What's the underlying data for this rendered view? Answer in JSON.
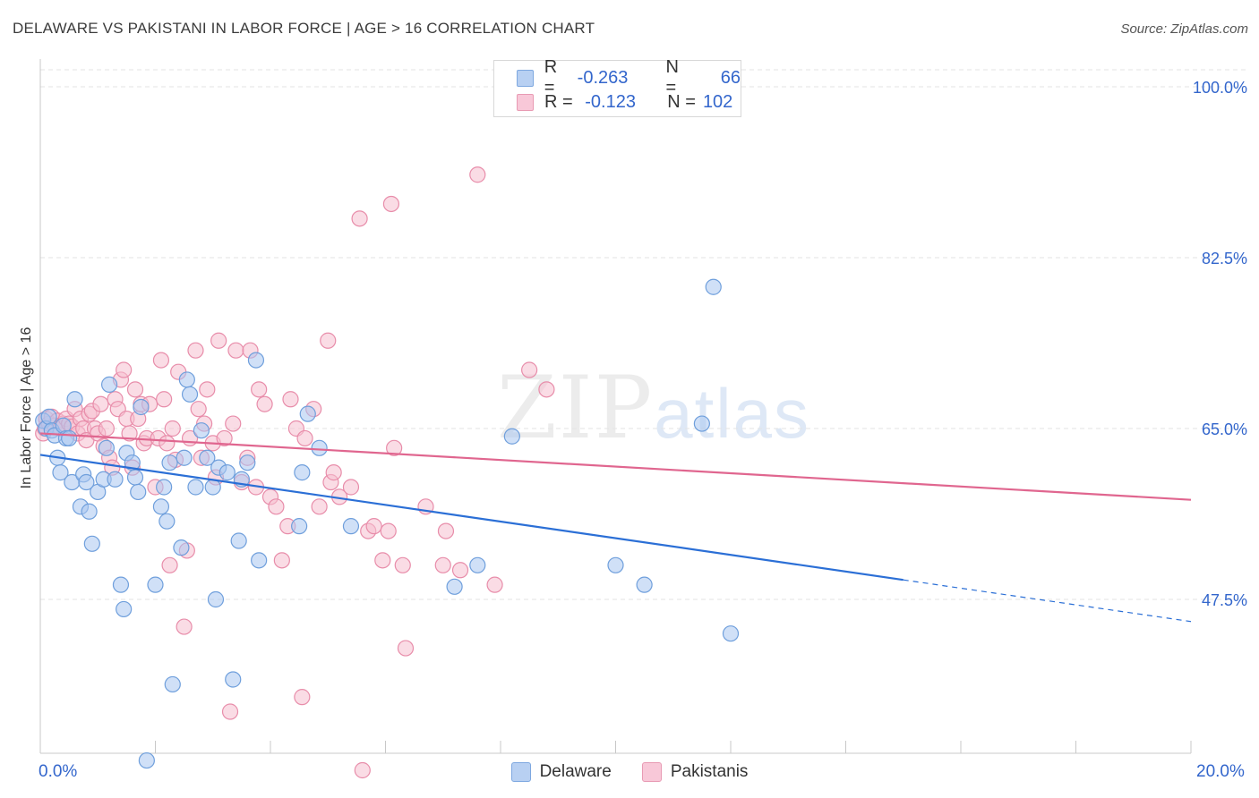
{
  "title": "DELAWARE VS PAKISTANI IN LABOR FORCE | AGE > 16 CORRELATION CHART",
  "source": "Source: ZipAtlas.com",
  "watermark": {
    "zip": "ZIP",
    "atlas": "atlas"
  },
  "legend_top": {
    "delaware": {
      "r_label": "R =",
      "r_value": "-0.263",
      "n_label": "N =",
      "n_value": "66"
    },
    "pakistani": {
      "r_label": "R =",
      "r_value": "-0.123",
      "n_label": "N =",
      "n_value": "102"
    }
  },
  "colors": {
    "delaware_fill": "#a9c7f0",
    "delaware_stroke": "#6f9fdc",
    "delaware_line": "#2b6fd6",
    "pakistani_fill": "#f5bfd0",
    "pakistani_stroke": "#e88daa",
    "pakistani_line": "#e0668f",
    "axis_text": "#3366cc",
    "grid": "#e3e3e3"
  },
  "chart_data": {
    "type": "scatter",
    "title": "DELAWARE VS PAKISTANI IN LABOR FORCE | AGE > 16 CORRELATION CHART",
    "xlabel": "",
    "ylabel": "In Labor Force | Age > 16",
    "xlim": [
      0,
      20
    ],
    "ylim": [
      32.5,
      104
    ],
    "x_tick_labels": [
      "0.0%",
      "20.0%"
    ],
    "y_ticks": [
      47.5,
      65.0,
      82.5,
      100.0
    ],
    "y_tick_labels": [
      "47.5%",
      "65.0%",
      "82.5%",
      "100.0%"
    ],
    "grid": true,
    "legend_position": "bottom-center",
    "series": [
      {
        "name": "Delaware",
        "x": [
          0.05,
          0.1,
          0.15,
          0.2,
          0.25,
          0.3,
          0.35,
          0.4,
          0.45,
          0.5,
          0.55,
          0.6,
          0.7,
          0.75,
          0.8,
          0.85,
          0.9,
          1.0,
          1.1,
          1.15,
          1.2,
          1.3,
          1.4,
          1.45,
          1.5,
          1.6,
          1.65,
          1.7,
          1.75,
          2.0,
          2.1,
          2.15,
          2.2,
          2.25,
          2.3,
          2.45,
          2.5,
          2.55,
          2.6,
          2.7,
          2.8,
          2.9,
          3.0,
          3.05,
          3.1,
          3.25,
          3.35,
          3.45,
          3.5,
          3.6,
          3.75,
          3.8,
          4.5,
          4.55,
          4.65,
          4.85,
          5.4,
          7.2,
          7.6,
          8.2,
          10.0,
          10.5,
          11.5,
          11.7,
          12.0,
          1.85
        ],
        "y": [
          65.8,
          65.0,
          66.2,
          64.8,
          64.3,
          62.0,
          60.5,
          65.3,
          64.0,
          64.0,
          59.5,
          68.0,
          57.0,
          60.3,
          59.5,
          56.5,
          53.2,
          58.5,
          59.8,
          63.0,
          69.5,
          59.8,
          49.0,
          46.5,
          62.5,
          61.5,
          60.0,
          58.5,
          67.2,
          49.0,
          57.0,
          59.0,
          55.5,
          61.5,
          38.8,
          52.8,
          62.0,
          70.0,
          68.5,
          59.0,
          64.8,
          62.0,
          59.0,
          47.5,
          61.0,
          60.5,
          39.3,
          53.5,
          59.8,
          61.5,
          72.0,
          51.5,
          55.0,
          60.5,
          66.5,
          63.0,
          55.0,
          48.8,
          51.0,
          64.2,
          51.0,
          49.0,
          65.5,
          79.5,
          44.0,
          31.0
        ],
        "_note_removed": true
      },
      {
        "name": "Pakistani",
        "x": [
          0.05,
          0.08,
          0.1,
          0.15,
          0.2,
          0.25,
          0.3,
          0.35,
          0.4,
          0.45,
          0.5,
          0.55,
          0.6,
          0.65,
          0.7,
          0.75,
          0.8,
          0.85,
          0.9,
          0.95,
          1.0,
          1.05,
          1.1,
          1.15,
          1.2,
          1.25,
          1.3,
          1.35,
          1.4,
          1.45,
          1.5,
          1.55,
          1.6,
          1.65,
          1.7,
          1.75,
          1.8,
          1.85,
          1.9,
          2.0,
          2.05,
          2.1,
          2.15,
          2.2,
          2.25,
          2.3,
          2.35,
          2.4,
          2.5,
          2.55,
          2.6,
          2.7,
          2.75,
          2.8,
          2.85,
          2.9,
          3.0,
          3.05,
          3.1,
          3.2,
          3.3,
          3.35,
          3.4,
          3.5,
          3.6,
          3.65,
          3.75,
          3.8,
          3.9,
          4.0,
          4.1,
          4.2,
          4.3,
          4.35,
          4.45,
          4.55,
          4.6,
          4.75,
          4.85,
          5.0,
          5.05,
          5.1,
          5.2,
          5.4,
          5.55,
          5.6,
          5.7,
          5.8,
          5.95,
          6.05,
          6.1,
          6.15,
          6.3,
          6.35,
          6.7,
          7.0,
          7.05,
          7.3,
          7.6,
          7.9,
          8.5,
          8.8
        ],
        "y": [
          64.5,
          65.0,
          66.0,
          65.5,
          66.2,
          65.3,
          65.8,
          65.0,
          65.5,
          66.0,
          65.5,
          65.2,
          67.0,
          64.5,
          66.0,
          65.0,
          63.8,
          66.5,
          66.8,
          65.0,
          64.5,
          67.5,
          63.2,
          65.0,
          62.0,
          61.0,
          68.0,
          67.0,
          70.0,
          71.0,
          66.0,
          64.5,
          61.0,
          69.0,
          66.0,
          67.5,
          63.5,
          64.0,
          67.5,
          59.0,
          64.0,
          72.0,
          68.0,
          63.5,
          51.0,
          65.0,
          61.8,
          70.8,
          44.7,
          52.5,
          64.0,
          73.0,
          67.0,
          62.0,
          65.5,
          69.0,
          63.5,
          60.0,
          74.0,
          64.0,
          36.0,
          65.5,
          73.0,
          59.5,
          62.0,
          73.0,
          59.0,
          69.0,
          67.5,
          58.0,
          57.0,
          51.5,
          55.0,
          68.0,
          65.0,
          37.5,
          64.0,
          67.0,
          57.0,
          74.0,
          59.5,
          60.5,
          58.0,
          59.0,
          86.5,
          30.0,
          54.5,
          55.0,
          51.5,
          54.5,
          88.0,
          63.0,
          51.0,
          42.5,
          57.0,
          51.0,
          54.5,
          50.5,
          91.0,
          49.0,
          71.0,
          69.0
        ],
        "_note_removed": true
      }
    ],
    "trend_lines": [
      {
        "name": "Delaware",
        "x": [
          0,
          15.0
        ],
        "y": [
          62.3,
          49.5
        ],
        "dashed_extension_to_x": 20
      },
      {
        "name": "Pakistani",
        "x": [
          0,
          20
        ],
        "y": [
          64.5,
          57.7
        ]
      }
    ]
  },
  "bottom_legend": [
    {
      "label": "Delaware"
    },
    {
      "label": "Pakistanis"
    }
  ]
}
